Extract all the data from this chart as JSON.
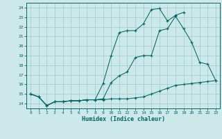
{
  "bg_color": "#cce8e8",
  "line_color": "#006666",
  "grid_color": "#99cccc",
  "xlabel": "Humidex (Indice chaleur)",
  "xlim": [
    -0.5,
    23.5
  ],
  "ylim": [
    13.5,
    24.5
  ],
  "xticks": [
    0,
    1,
    2,
    3,
    4,
    5,
    6,
    7,
    8,
    9,
    10,
    11,
    12,
    13,
    14,
    15,
    16,
    17,
    18,
    19,
    20,
    21,
    22,
    23
  ],
  "yticks": [
    14,
    15,
    16,
    17,
    18,
    19,
    20,
    21,
    22,
    23,
    24
  ],
  "curve1": [
    [
      0,
      15.0
    ],
    [
      1,
      14.7
    ],
    [
      2,
      13.8
    ],
    [
      3,
      14.2
    ],
    [
      4,
      14.2
    ],
    [
      5,
      14.3
    ],
    [
      6,
      14.3
    ],
    [
      7,
      14.4
    ],
    [
      8,
      14.4
    ],
    [
      9,
      16.1
    ],
    [
      10,
      19.0
    ],
    [
      11,
      21.4
    ],
    [
      12,
      21.6
    ],
    [
      13,
      21.6
    ],
    [
      14,
      22.3
    ],
    [
      15,
      23.8
    ],
    [
      16,
      23.9
    ],
    [
      17,
      22.6
    ],
    [
      18,
      23.2
    ],
    [
      19,
      23.5
    ]
  ],
  "curve2": [
    [
      0,
      15.0
    ],
    [
      1,
      14.7
    ],
    [
      2,
      13.8
    ],
    [
      3,
      14.2
    ],
    [
      4,
      14.2
    ],
    [
      5,
      14.3
    ],
    [
      6,
      14.3
    ],
    [
      7,
      14.4
    ],
    [
      8,
      14.4
    ],
    [
      9,
      14.4
    ],
    [
      10,
      14.5
    ],
    [
      11,
      14.5
    ],
    [
      12,
      14.5
    ],
    [
      13,
      14.6
    ],
    [
      14,
      14.7
    ],
    [
      15,
      15.0
    ],
    [
      16,
      15.3
    ],
    [
      17,
      15.6
    ],
    [
      18,
      15.9
    ],
    [
      19,
      16.0
    ],
    [
      20,
      16.1
    ],
    [
      21,
      16.2
    ],
    [
      22,
      16.3
    ],
    [
      23,
      16.4
    ]
  ],
  "curve3": [
    [
      0,
      15.0
    ],
    [
      1,
      14.7
    ],
    [
      2,
      13.8
    ],
    [
      3,
      14.2
    ],
    [
      4,
      14.2
    ],
    [
      5,
      14.3
    ],
    [
      6,
      14.3
    ],
    [
      7,
      14.4
    ],
    [
      8,
      14.4
    ],
    [
      9,
      14.5
    ],
    [
      10,
      16.2
    ],
    [
      11,
      16.9
    ],
    [
      12,
      17.3
    ],
    [
      13,
      18.8
    ],
    [
      14,
      19.0
    ],
    [
      15,
      19.0
    ],
    [
      16,
      21.6
    ],
    [
      17,
      21.8
    ],
    [
      18,
      23.1
    ],
    [
      19,
      21.8
    ],
    [
      20,
      20.4
    ],
    [
      21,
      18.3
    ],
    [
      22,
      18.1
    ],
    [
      23,
      16.4
    ]
  ]
}
